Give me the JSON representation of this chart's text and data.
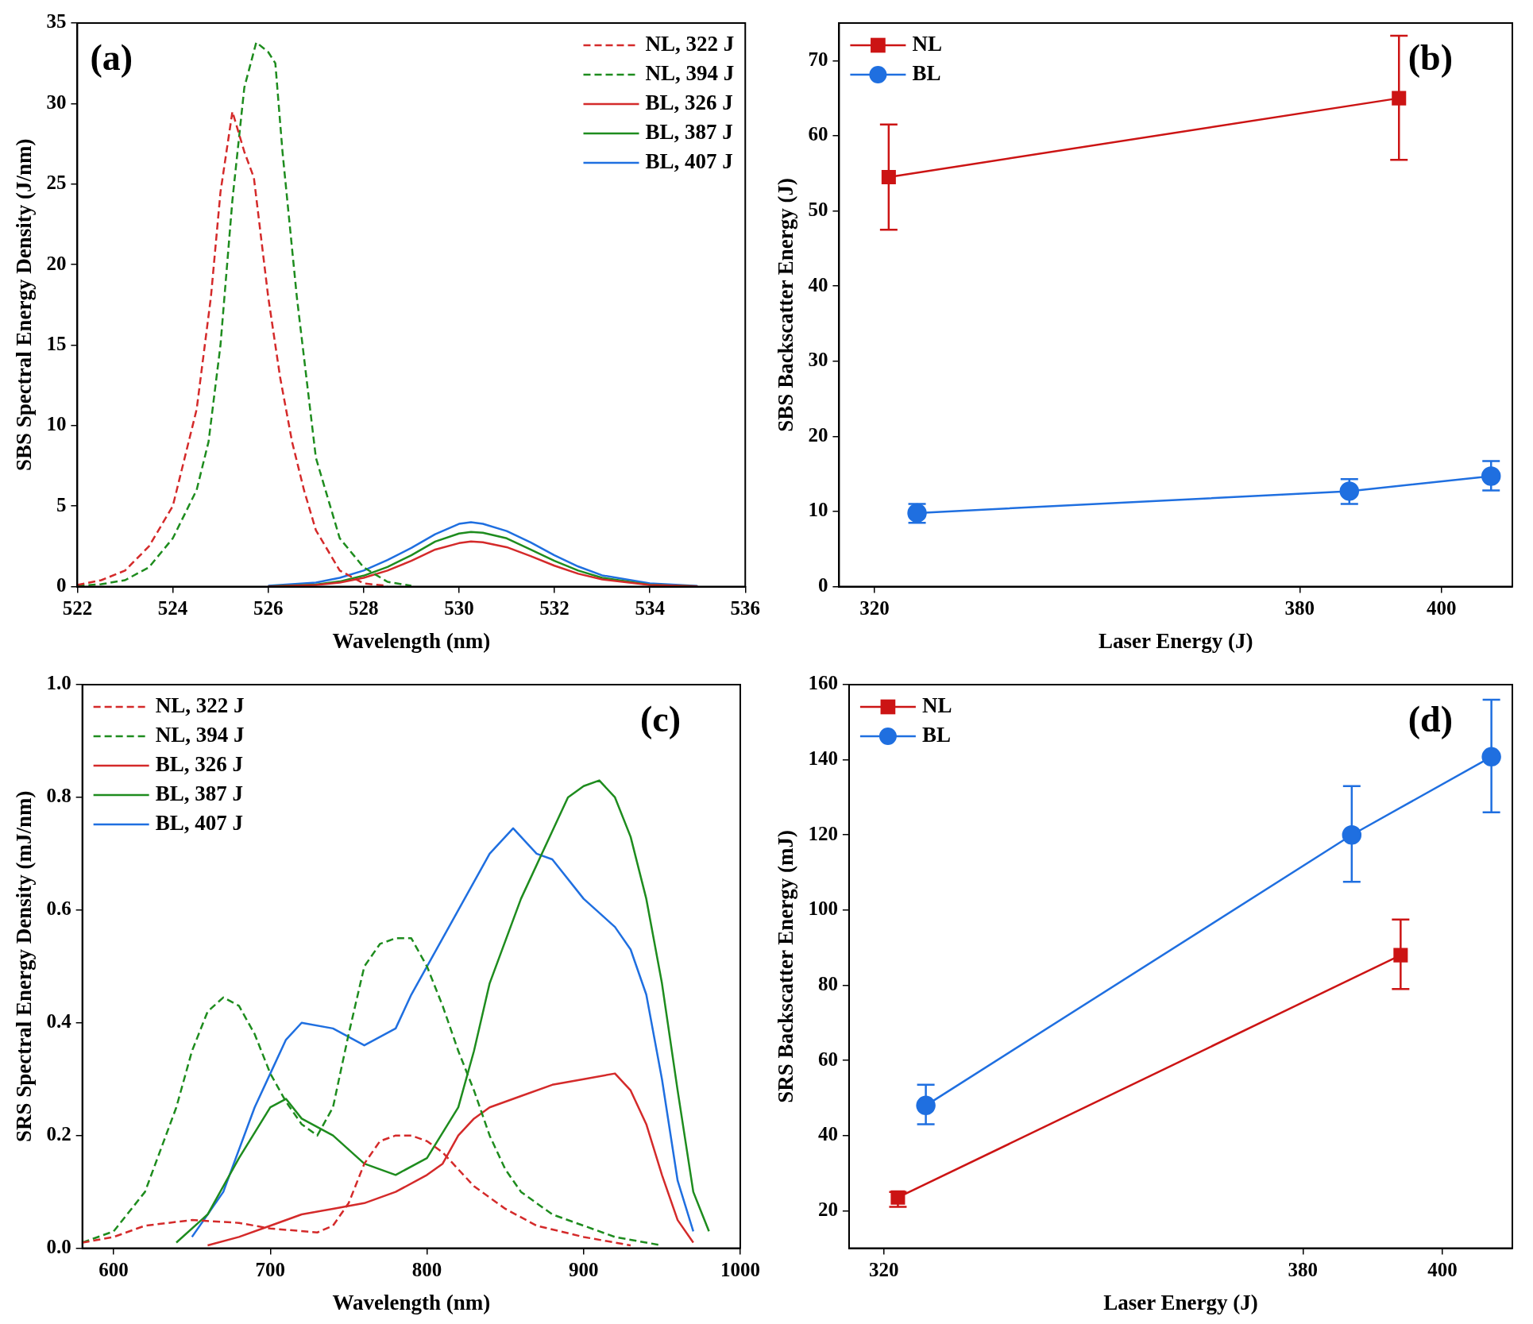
{
  "chart_data": [
    {
      "type": "line",
      "xlabel": "Wavelength (nm)",
      "ylabel": "SBS Spectral Energy Density (J/nm)",
      "annotations": [
        "(a)"
      ],
      "legend": "top right",
      "xlim": [
        522,
        536
      ],
      "xticks": [
        522,
        524,
        526,
        528,
        530,
        532,
        534,
        536
      ],
      "ylim": [
        0,
        35
      ],
      "yticks": [
        0,
        5,
        10,
        15,
        20,
        25,
        30,
        35
      ],
      "series": [
        {
          "name": "NL, 322 J",
          "color": "#d42a2a",
          "line_style": "dashed",
          "x": [
            522,
            522.5,
            523,
            523.5,
            524,
            524.5,
            524.8,
            525,
            525.25,
            525.5,
            525.7,
            526,
            526.25,
            526.5,
            526.75,
            527,
            527.5,
            528,
            528.5
          ],
          "values": [
            0.1,
            0.4,
            1,
            2.5,
            5,
            11,
            18,
            24.5,
            29.5,
            27,
            25.4,
            18,
            13,
            9,
            6,
            3.5,
            1,
            0.2,
            0.05
          ]
        },
        {
          "name": "NL, 394 J",
          "color": "#1e8c1e",
          "line_style": "dashed",
          "x": [
            522,
            522.5,
            523,
            523.5,
            524,
            524.5,
            524.75,
            525,
            525.25,
            525.5,
            525.75,
            526,
            526.15,
            526.3,
            526.6,
            527,
            527.5,
            528,
            528.5,
            529
          ],
          "values": [
            0.05,
            0.15,
            0.4,
            1.2,
            3,
            6,
            9,
            15,
            24,
            31,
            33.8,
            33.2,
            32.5,
            27,
            18,
            8,
            3,
            1.2,
            0.3,
            0.05
          ]
        },
        {
          "name": "BL, 326 J",
          "color": "#d42a2a",
          "line_style": "solid",
          "x": [
            526,
            527,
            527.5,
            528,
            528.5,
            529,
            529.5,
            530,
            530.25,
            530.5,
            531,
            531.5,
            532,
            532.5,
            533,
            534,
            535
          ],
          "values": [
            0.01,
            0.1,
            0.25,
            0.55,
            1,
            1.6,
            2.3,
            2.7,
            2.8,
            2.75,
            2.45,
            1.9,
            1.3,
            0.8,
            0.45,
            0.1,
            0.02
          ]
        },
        {
          "name": "BL, 387 J",
          "color": "#1e8c1e",
          "line_style": "solid",
          "x": [
            526,
            527,
            527.5,
            528,
            528.5,
            529,
            529.5,
            530,
            530.25,
            530.5,
            531,
            531.5,
            532,
            532.5,
            533,
            534,
            535
          ],
          "values": [
            0.02,
            0.13,
            0.32,
            0.68,
            1.22,
            1.95,
            2.8,
            3.3,
            3.4,
            3.35,
            3,
            2.3,
            1.6,
            1,
            0.55,
            0.12,
            0.02
          ]
        },
        {
          "name": "BL, 407 J",
          "color": "#1f6fe0",
          "line_style": "solid",
          "x": [
            526,
            527,
            527.5,
            528,
            528.5,
            529,
            529.5,
            530,
            530.25,
            530.5,
            531,
            531.5,
            532,
            532.5,
            533,
            534,
            535
          ],
          "values": [
            0.05,
            0.25,
            0.55,
            1,
            1.65,
            2.4,
            3.25,
            3.9,
            4,
            3.9,
            3.45,
            2.75,
            1.95,
            1.25,
            0.7,
            0.2,
            0.04
          ]
        }
      ]
    },
    {
      "type": "line",
      "xlabel": "Laser Energy (J)",
      "ylabel": "SBS Backscatter Energy (J)",
      "annotations": [
        "(b)"
      ],
      "legend": "top left",
      "xlim": [
        315,
        410
      ],
      "xticks": [
        320,
        380,
        400
      ],
      "ylim": [
        0,
        75
      ],
      "yticks": [
        0,
        10,
        20,
        30,
        40,
        50,
        60,
        70
      ],
      "series": [
        {
          "name": "NL",
          "color": "#cc1414",
          "marker": "square",
          "x": [
            322,
            394
          ],
          "values": [
            54.5,
            65
          ],
          "errors": [
            [
              47.5,
              61.5
            ],
            [
              56.8,
              73.3
            ]
          ]
        },
        {
          "name": "BL",
          "color": "#1f6fe0",
          "marker": "circle",
          "x": [
            326,
            387,
            407
          ],
          "values": [
            9.8,
            12.7,
            14.7
          ],
          "errors": [
            [
              8.5,
              11
            ],
            [
              11,
              14.3
            ],
            [
              12.8,
              16.7
            ]
          ]
        }
      ]
    },
    {
      "type": "line",
      "xlabel": "Wavelength (nm)",
      "ylabel": "SRS Spectral Energy Density (mJ/nm)",
      "annotations": [
        "(c)"
      ],
      "legend": "top left",
      "xlim": [
        580,
        1000
      ],
      "xticks": [
        600,
        700,
        800,
        900,
        1000
      ],
      "ylim": [
        0,
        1
      ],
      "yticks": [
        {
          "value": 0,
          "label": "0.0"
        },
        {
          "value": 0.2,
          "label": "0.2"
        },
        {
          "value": 0.4,
          "label": "0.4"
        },
        {
          "value": 0.6,
          "label": "0.6"
        },
        {
          "value": 0.8,
          "label": "0.8"
        },
        {
          "value": 1,
          "label": "1.0"
        }
      ],
      "series": [
        {
          "name": "NL, 322 J",
          "color": "#d42a2a",
          "line_style": "dashed",
          "x": [
            580,
            600,
            620,
            650,
            680,
            700,
            730,
            740,
            750,
            760,
            770,
            780,
            790,
            800,
            810,
            820,
            830,
            850,
            870,
            900,
            930
          ],
          "values": [
            0.01,
            0.02,
            0.04,
            0.05,
            0.045,
            0.035,
            0.028,
            0.04,
            0.08,
            0.15,
            0.19,
            0.2,
            0.2,
            0.19,
            0.17,
            0.14,
            0.11,
            0.07,
            0.04,
            0.02,
            0.005
          ]
        },
        {
          "name": "NL, 394 J",
          "color": "#1e8c1e",
          "line_style": "dashed",
          "x": [
            580,
            600,
            620,
            640,
            650,
            660,
            670,
            680,
            690,
            700,
            710,
            720,
            730,
            740,
            750,
            760,
            770,
            780,
            790,
            800,
            810,
            820,
            830,
            840,
            850,
            860,
            880,
            900,
            920,
            950
          ],
          "values": [
            0.01,
            0.03,
            0.1,
            0.25,
            0.35,
            0.42,
            0.445,
            0.43,
            0.38,
            0.31,
            0.26,
            0.22,
            0.2,
            0.25,
            0.38,
            0.5,
            0.54,
            0.55,
            0.55,
            0.5,
            0.43,
            0.35,
            0.28,
            0.2,
            0.14,
            0.1,
            0.06,
            0.04,
            0.02,
            0.005
          ]
        },
        {
          "name": "BL, 326 J",
          "color": "#d42a2a",
          "line_style": "solid",
          "x": [
            660,
            680,
            700,
            720,
            740,
            760,
            780,
            800,
            810,
            820,
            830,
            840,
            860,
            880,
            900,
            920,
            930,
            940,
            950,
            960,
            970
          ],
          "values": [
            0.005,
            0.02,
            0.04,
            0.06,
            0.07,
            0.08,
            0.1,
            0.13,
            0.15,
            0.2,
            0.23,
            0.25,
            0.27,
            0.29,
            0.3,
            0.31,
            0.28,
            0.22,
            0.13,
            0.05,
            0.01
          ]
        },
        {
          "name": "BL, 387 J",
          "color": "#1e8c1e",
          "line_style": "solid",
          "x": [
            640,
            660,
            680,
            700,
            710,
            720,
            740,
            760,
            780,
            800,
            820,
            830,
            840,
            860,
            880,
            890,
            900,
            910,
            920,
            930,
            940,
            950,
            960,
            970,
            980
          ],
          "values": [
            0.01,
            0.06,
            0.16,
            0.25,
            0.265,
            0.23,
            0.2,
            0.15,
            0.13,
            0.16,
            0.25,
            0.35,
            0.47,
            0.62,
            0.74,
            0.8,
            0.82,
            0.83,
            0.8,
            0.73,
            0.62,
            0.47,
            0.28,
            0.1,
            0.03
          ]
        },
        {
          "name": "BL, 407 J",
          "color": "#1f6fe0",
          "line_style": "solid",
          "x": [
            650,
            670,
            690,
            700,
            710,
            720,
            740,
            760,
            780,
            790,
            800,
            820,
            840,
            855,
            870,
            880,
            900,
            920,
            930,
            940,
            950,
            960,
            970
          ],
          "values": [
            0.02,
            0.1,
            0.25,
            0.31,
            0.37,
            0.4,
            0.39,
            0.36,
            0.39,
            0.45,
            0.5,
            0.6,
            0.7,
            0.745,
            0.7,
            0.69,
            0.62,
            0.57,
            0.53,
            0.45,
            0.3,
            0.12,
            0.03
          ]
        }
      ]
    },
    {
      "type": "line",
      "xlabel": "Laser Energy (J)",
      "ylabel": "SRS Backscatter Energy (mJ)",
      "annotations": [
        "(d)"
      ],
      "legend": "top left",
      "xlim": [
        315,
        410
      ],
      "xticks": [
        320,
        380,
        400
      ],
      "ylim": [
        10,
        160
      ],
      "yticks": [
        20,
        40,
        60,
        80,
        100,
        120,
        140,
        160
      ],
      "series": [
        {
          "name": "NL",
          "color": "#cc1414",
          "marker": "square",
          "x": [
            322,
            394
          ],
          "values": [
            23.5,
            88
          ],
          "errors": [
            [
              21,
              25
            ],
            [
              79,
              97.5
            ]
          ]
        },
        {
          "name": "BL",
          "color": "#1f6fe0",
          "marker": "circle",
          "x": [
            326,
            387,
            407
          ],
          "values": [
            48,
            120,
            140.8
          ],
          "errors": [
            [
              43,
              53.5
            ],
            [
              107.5,
              133
            ],
            [
              126,
              156
            ]
          ]
        }
      ]
    }
  ]
}
